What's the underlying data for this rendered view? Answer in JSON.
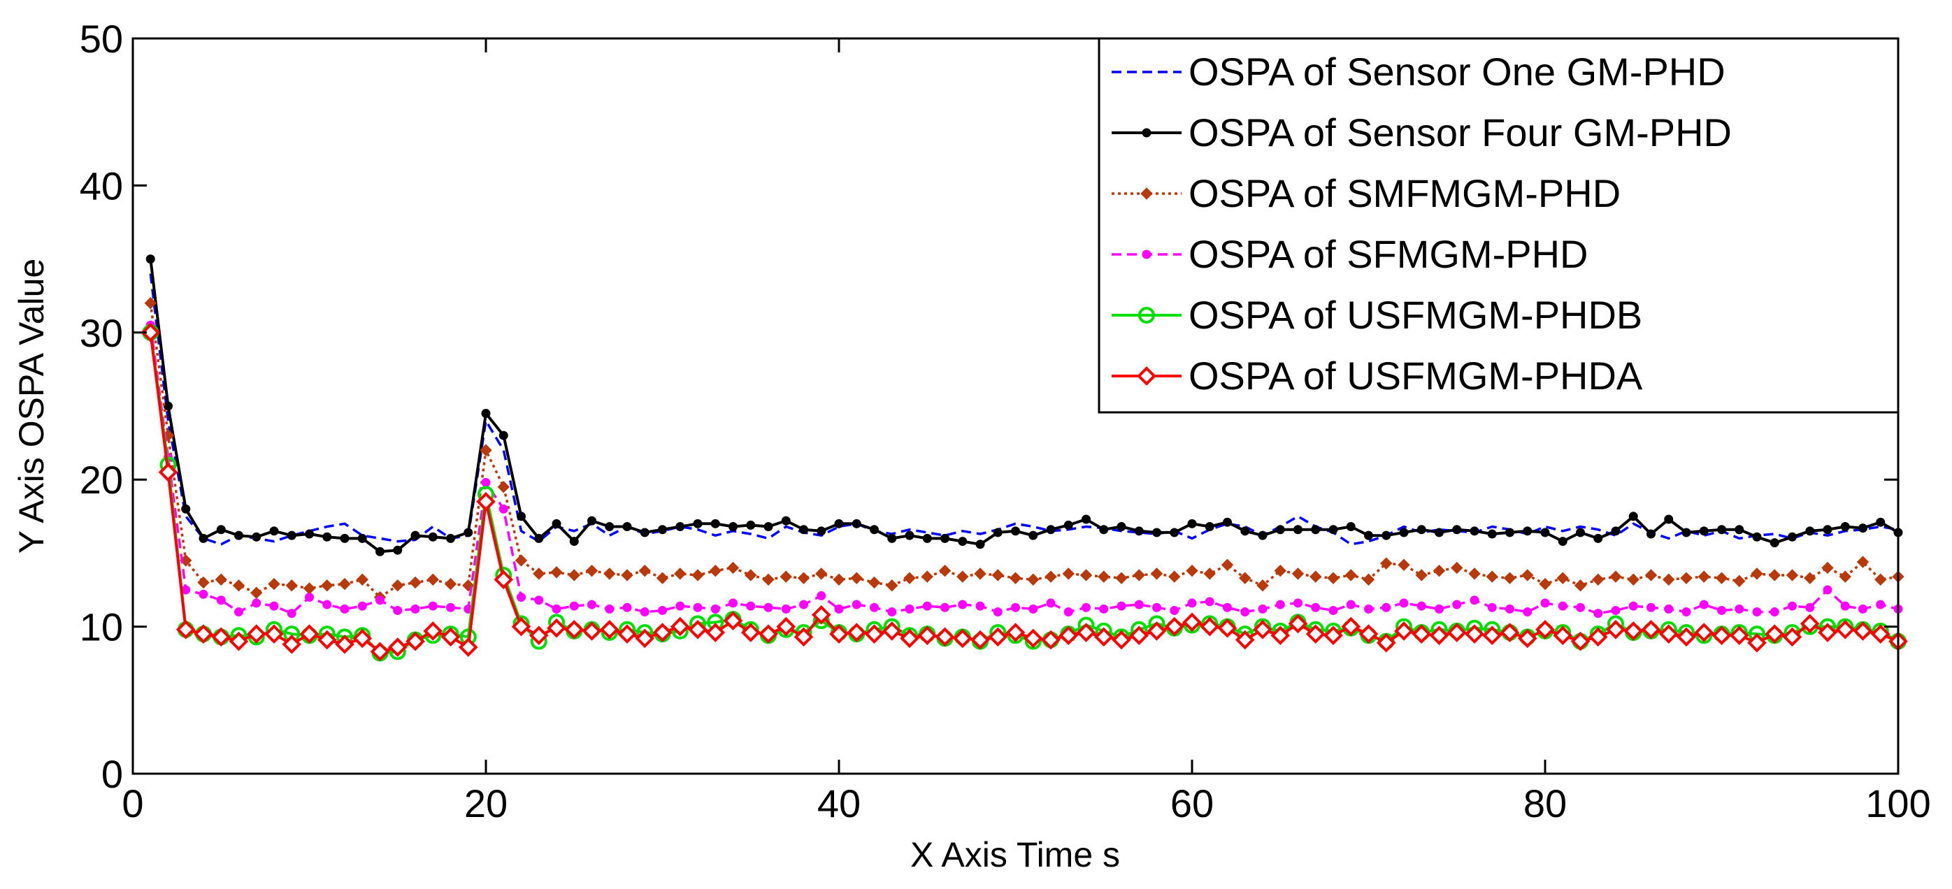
{
  "chart_data": {
    "type": "line",
    "title": "",
    "xlabel": "X Axis Time s",
    "ylabel": "Y Axis OSPA Value",
    "xlim": [
      0,
      100
    ],
    "ylim": [
      0,
      50
    ],
    "xticks": [
      0,
      20,
      40,
      60,
      80,
      100
    ],
    "yticks": [
      0,
      10,
      20,
      30,
      40,
      50
    ],
    "grid": false,
    "legend_position": "top-right",
    "series": [
      {
        "name": "OSPA of Sensor One GM-PHD",
        "color": "#0000ff",
        "line_style": "dashed",
        "marker": "none",
        "x": [
          1,
          2,
          3,
          4,
          5,
          6,
          7,
          8,
          9,
          10,
          11,
          12,
          13,
          14,
          15,
          16,
          17,
          18,
          19,
          20,
          21,
          22,
          23,
          24,
          25,
          26,
          27,
          28,
          29,
          30,
          31,
          32,
          33,
          34,
          35,
          36,
          37,
          38,
          39,
          40,
          41,
          42,
          43,
          44,
          45,
          46,
          47,
          48,
          49,
          50,
          51,
          52,
          53,
          54,
          55,
          56,
          57,
          58,
          59,
          60,
          61,
          62,
          63,
          64,
          65,
          66,
          67,
          68,
          69,
          70,
          71,
          72,
          73,
          74,
          75,
          76,
          77,
          78,
          79,
          80,
          81,
          82,
          83,
          84,
          85,
          86,
          87,
          88,
          89,
          90,
          91,
          92,
          93,
          94,
          95,
          96,
          97,
          98,
          99,
          100
        ],
        "values": [
          34.0,
          24.0,
          17.5,
          16.0,
          15.6,
          16.2,
          16.0,
          15.8,
          16.2,
          16.5,
          16.8,
          17.0,
          16.2,
          16.0,
          15.8,
          15.9,
          16.8,
          16.0,
          16.2,
          24.0,
          22.0,
          16.5,
          15.8,
          16.8,
          16.5,
          17.0,
          16.2,
          16.8,
          16.3,
          16.5,
          16.8,
          16.6,
          16.2,
          16.5,
          16.3,
          16.0,
          16.8,
          16.4,
          16.2,
          16.8,
          17.0,
          16.5,
          16.3,
          16.6,
          16.4,
          16.2,
          16.5,
          16.3,
          16.6,
          17.0,
          16.8,
          16.5,
          16.6,
          16.8,
          16.7,
          16.5,
          16.4,
          16.3,
          16.5,
          16.0,
          16.6,
          17.0,
          16.8,
          16.2,
          16.8,
          17.5,
          16.8,
          16.4,
          15.6,
          15.8,
          16.2,
          16.8,
          16.4,
          16.6,
          16.5,
          16.4,
          16.8,
          16.6,
          16.3,
          16.8,
          16.5,
          16.8,
          16.6,
          16.2,
          17.0,
          16.4,
          16.0,
          16.5,
          16.2,
          16.5,
          16.0,
          16.2,
          16.3,
          16.0,
          16.4,
          16.2,
          16.5,
          16.6,
          16.8,
          16.6
        ]
      },
      {
        "name": "OSPA of Sensor Four GM-PHD",
        "color": "#000000",
        "line_style": "solid",
        "marker": "dot",
        "x": [
          1,
          2,
          3,
          4,
          5,
          6,
          7,
          8,
          9,
          10,
          11,
          12,
          13,
          14,
          15,
          16,
          17,
          18,
          19,
          20,
          21,
          22,
          23,
          24,
          25,
          26,
          27,
          28,
          29,
          30,
          31,
          32,
          33,
          34,
          35,
          36,
          37,
          38,
          39,
          40,
          41,
          42,
          43,
          44,
          45,
          46,
          47,
          48,
          49,
          50,
          51,
          52,
          53,
          54,
          55,
          56,
          57,
          58,
          59,
          60,
          61,
          62,
          63,
          64,
          65,
          66,
          67,
          68,
          69,
          70,
          71,
          72,
          73,
          74,
          75,
          76,
          77,
          78,
          79,
          80,
          81,
          82,
          83,
          84,
          85,
          86,
          87,
          88,
          89,
          90,
          91,
          92,
          93,
          94,
          95,
          96,
          97,
          98,
          99,
          100
        ],
        "values": [
          35.0,
          25.0,
          18.0,
          16.0,
          16.6,
          16.2,
          16.1,
          16.5,
          16.2,
          16.3,
          16.1,
          16.0,
          16.0,
          15.1,
          15.2,
          16.2,
          16.1,
          16.0,
          16.4,
          24.5,
          23.0,
          17.5,
          16.0,
          17.0,
          15.8,
          17.2,
          16.8,
          16.8,
          16.4,
          16.6,
          16.8,
          17.0,
          17.0,
          16.8,
          16.9,
          16.8,
          17.2,
          16.6,
          16.5,
          17.0,
          17.0,
          16.6,
          16.0,
          16.2,
          16.0,
          16.0,
          15.8,
          15.6,
          16.4,
          16.5,
          16.2,
          16.6,
          16.9,
          17.3,
          16.6,
          16.8,
          16.5,
          16.4,
          16.4,
          17.0,
          16.8,
          17.1,
          16.5,
          16.2,
          16.6,
          16.6,
          16.6,
          16.6,
          16.8,
          16.2,
          16.2,
          16.4,
          16.6,
          16.4,
          16.6,
          16.5,
          16.3,
          16.4,
          16.5,
          16.4,
          15.8,
          16.4,
          16.0,
          16.5,
          17.5,
          16.3,
          17.3,
          16.4,
          16.5,
          16.6,
          16.6,
          16.1,
          15.7,
          16.1,
          16.5,
          16.6,
          16.8,
          16.7,
          17.1,
          16.4
        ]
      },
      {
        "name": "OSPA of SMFMGM-PHD",
        "color": "#b83a0c",
        "line_style": "dotted",
        "marker": "diamond-filled",
        "x": [
          1,
          2,
          3,
          4,
          5,
          6,
          7,
          8,
          9,
          10,
          11,
          12,
          13,
          14,
          15,
          16,
          17,
          18,
          19,
          20,
          21,
          22,
          23,
          24,
          25,
          26,
          27,
          28,
          29,
          30,
          31,
          32,
          33,
          34,
          35,
          36,
          37,
          38,
          39,
          40,
          41,
          42,
          43,
          44,
          45,
          46,
          47,
          48,
          49,
          50,
          51,
          52,
          53,
          54,
          55,
          56,
          57,
          58,
          59,
          60,
          61,
          62,
          63,
          64,
          65,
          66,
          67,
          68,
          69,
          70,
          71,
          72,
          73,
          74,
          75,
          76,
          77,
          78,
          79,
          80,
          81,
          82,
          83,
          84,
          85,
          86,
          87,
          88,
          89,
          90,
          91,
          92,
          93,
          94,
          95,
          96,
          97,
          98,
          99,
          100
        ],
        "values": [
          32.0,
          23.0,
          14.5,
          13.0,
          13.2,
          12.8,
          12.3,
          12.9,
          12.8,
          12.6,
          12.8,
          12.9,
          13.2,
          12.0,
          12.8,
          13.0,
          13.2,
          12.9,
          12.8,
          22.0,
          19.5,
          14.5,
          13.6,
          13.7,
          13.5,
          13.8,
          13.6,
          13.5,
          13.8,
          13.3,
          13.6,
          13.5,
          13.8,
          14.0,
          13.5,
          13.2,
          13.4,
          13.3,
          13.6,
          13.2,
          13.3,
          13.0,
          12.8,
          13.3,
          13.4,
          13.8,
          13.4,
          13.6,
          13.5,
          13.3,
          13.2,
          13.4,
          13.6,
          13.5,
          13.4,
          13.3,
          13.5,
          13.6,
          13.4,
          13.8,
          13.6,
          14.2,
          13.3,
          12.8,
          13.8,
          13.6,
          13.4,
          13.3,
          13.5,
          13.2,
          14.3,
          14.2,
          13.5,
          13.8,
          14.0,
          13.6,
          13.4,
          13.3,
          13.5,
          12.9,
          13.3,
          12.8,
          13.2,
          13.4,
          13.2,
          13.5,
          13.2,
          13.3,
          13.4,
          13.3,
          13.1,
          13.6,
          13.5,
          13.5,
          13.3,
          14.0,
          13.4,
          14.4,
          13.2,
          13.4
        ]
      },
      {
        "name": "OSPA of SFMGM-PHD",
        "color": "#ff00ff",
        "line_style": "dashed",
        "marker": "dot",
        "x": [
          1,
          2,
          3,
          4,
          5,
          6,
          7,
          8,
          9,
          10,
          11,
          12,
          13,
          14,
          15,
          16,
          17,
          18,
          19,
          20,
          21,
          22,
          23,
          24,
          25,
          26,
          27,
          28,
          29,
          30,
          31,
          32,
          33,
          34,
          35,
          36,
          37,
          38,
          39,
          40,
          41,
          42,
          43,
          44,
          45,
          46,
          47,
          48,
          49,
          50,
          51,
          52,
          53,
          54,
          55,
          56,
          57,
          58,
          59,
          60,
          61,
          62,
          63,
          64,
          65,
          66,
          67,
          68,
          69,
          70,
          71,
          72,
          73,
          74,
          75,
          76,
          77,
          78,
          79,
          80,
          81,
          82,
          83,
          84,
          85,
          86,
          87,
          88,
          89,
          90,
          91,
          92,
          93,
          94,
          95,
          96,
          97,
          98,
          99,
          100
        ],
        "values": [
          30.5,
          21.5,
          12.5,
          12.2,
          11.8,
          11.0,
          11.6,
          11.4,
          10.9,
          12.0,
          11.5,
          11.2,
          11.4,
          11.8,
          11.1,
          11.2,
          11.4,
          11.3,
          11.2,
          19.8,
          18.0,
          12.0,
          11.8,
          11.2,
          11.4,
          11.5,
          11.2,
          11.3,
          11.0,
          11.1,
          11.4,
          11.3,
          11.2,
          11.6,
          11.4,
          11.3,
          11.2,
          11.5,
          12.1,
          11.2,
          11.5,
          11.3,
          11.0,
          11.2,
          11.4,
          11.3,
          11.5,
          11.4,
          11.0,
          11.3,
          11.2,
          11.6,
          11.0,
          11.3,
          11.2,
          11.4,
          11.5,
          11.3,
          11.1,
          11.6,
          11.7,
          11.3,
          11.0,
          11.2,
          11.5,
          11.6,
          11.3,
          11.1,
          11.5,
          11.2,
          11.3,
          11.6,
          11.4,
          11.2,
          11.5,
          11.8,
          11.3,
          11.2,
          11.0,
          11.6,
          11.4,
          11.3,
          10.9,
          11.1,
          11.4,
          11.3,
          11.2,
          11.0,
          11.5,
          11.1,
          11.2,
          11.0,
          11.0,
          11.4,
          11.3,
          12.5,
          11.4,
          11.2,
          11.5,
          11.2
        ]
      },
      {
        "name": "OSPA of USFMGM-PHDB",
        "color": "#00dd00",
        "line_style": "solid",
        "marker": "circle-open",
        "x": [
          1,
          2,
          3,
          4,
          5,
          6,
          7,
          8,
          9,
          10,
          11,
          12,
          13,
          14,
          15,
          16,
          17,
          18,
          19,
          20,
          21,
          22,
          23,
          24,
          25,
          26,
          27,
          28,
          29,
          30,
          31,
          32,
          33,
          34,
          35,
          36,
          37,
          38,
          39,
          40,
          41,
          42,
          43,
          44,
          45,
          46,
          47,
          48,
          49,
          50,
          51,
          52,
          53,
          54,
          55,
          56,
          57,
          58,
          59,
          60,
          61,
          62,
          63,
          64,
          65,
          66,
          67,
          68,
          69,
          70,
          71,
          72,
          73,
          74,
          75,
          76,
          77,
          78,
          79,
          80,
          81,
          82,
          83,
          84,
          85,
          86,
          87,
          88,
          89,
          90,
          91,
          92,
          93,
          94,
          95,
          96,
          97,
          98,
          99,
          100
        ],
        "values": [
          30.0,
          21.0,
          9.8,
          9.5,
          9.3,
          9.4,
          9.3,
          9.8,
          9.5,
          9.4,
          9.5,
          9.3,
          9.4,
          8.2,
          8.3,
          9.1,
          9.4,
          9.5,
          9.3,
          19.0,
          13.5,
          10.2,
          9.0,
          10.3,
          9.7,
          9.8,
          9.6,
          9.8,
          9.6,
          9.5,
          9.7,
          10.2,
          10.3,
          10.5,
          9.8,
          9.4,
          9.8,
          9.6,
          10.4,
          9.6,
          9.5,
          9.8,
          10.0,
          9.4,
          9.5,
          9.2,
          9.3,
          9.0,
          9.6,
          9.4,
          9.0,
          9.1,
          9.5,
          10.1,
          9.7,
          9.3,
          9.8,
          10.2,
          9.9,
          10.1,
          10.2,
          10.0,
          9.5,
          10.0,
          9.7,
          10.3,
          9.8,
          9.7,
          9.9,
          9.4,
          9.0,
          10.0,
          9.6,
          9.8,
          9.7,
          9.9,
          9.8,
          9.6,
          9.3,
          9.7,
          9.6,
          9.0,
          9.5,
          10.2,
          9.6,
          9.7,
          9.8,
          9.6,
          9.4,
          9.5,
          9.6,
          9.5,
          9.4,
          9.6,
          10.0,
          10.0,
          10.0,
          9.8,
          9.7,
          9.0
        ]
      },
      {
        "name": "OSPA of USFMGM-PHDA",
        "color": "#ff0000",
        "line_style": "solid",
        "marker": "diamond-open",
        "x": [
          1,
          2,
          3,
          4,
          5,
          6,
          7,
          8,
          9,
          10,
          11,
          12,
          13,
          14,
          15,
          16,
          17,
          18,
          19,
          20,
          21,
          22,
          23,
          24,
          25,
          26,
          27,
          28,
          29,
          30,
          31,
          32,
          33,
          34,
          35,
          36,
          37,
          38,
          39,
          40,
          41,
          42,
          43,
          44,
          45,
          46,
          47,
          48,
          49,
          50,
          51,
          52,
          53,
          54,
          55,
          56,
          57,
          58,
          59,
          60,
          61,
          62,
          63,
          64,
          65,
          66,
          67,
          68,
          69,
          70,
          71,
          72,
          73,
          74,
          75,
          76,
          77,
          78,
          79,
          80,
          81,
          82,
          83,
          84,
          85,
          86,
          87,
          88,
          89,
          90,
          91,
          92,
          93,
          94,
          95,
          96,
          97,
          98,
          99,
          100
        ],
        "values": [
          30.0,
          20.5,
          9.8,
          9.5,
          9.3,
          9.0,
          9.5,
          9.5,
          8.8,
          9.5,
          9.1,
          8.8,
          9.2,
          8.3,
          8.6,
          9.0,
          9.7,
          9.3,
          8.6,
          18.5,
          13.2,
          10.0,
          9.4,
          9.9,
          9.8,
          9.7,
          9.8,
          9.5,
          9.2,
          9.6,
          10.0,
          9.8,
          9.6,
          10.4,
          9.6,
          9.5,
          10.0,
          9.3,
          10.8,
          9.5,
          9.6,
          9.5,
          9.7,
          9.2,
          9.4,
          9.3,
          9.2,
          9.1,
          9.3,
          9.6,
          9.2,
          9.1,
          9.4,
          9.6,
          9.3,
          9.1,
          9.4,
          9.7,
          10.0,
          10.3,
          10.0,
          9.9,
          9.1,
          9.8,
          9.4,
          10.2,
          9.5,
          9.4,
          10.0,
          9.5,
          8.9,
          9.7,
          9.5,
          9.4,
          9.6,
          9.5,
          9.4,
          9.6,
          9.2,
          9.8,
          9.4,
          9.0,
          9.3,
          9.8,
          9.7,
          9.8,
          9.5,
          9.3,
          9.6,
          9.4,
          9.4,
          8.9,
          9.5,
          9.3,
          10.2,
          9.6,
          9.8,
          9.7,
          9.5,
          9.0
        ]
      }
    ]
  }
}
